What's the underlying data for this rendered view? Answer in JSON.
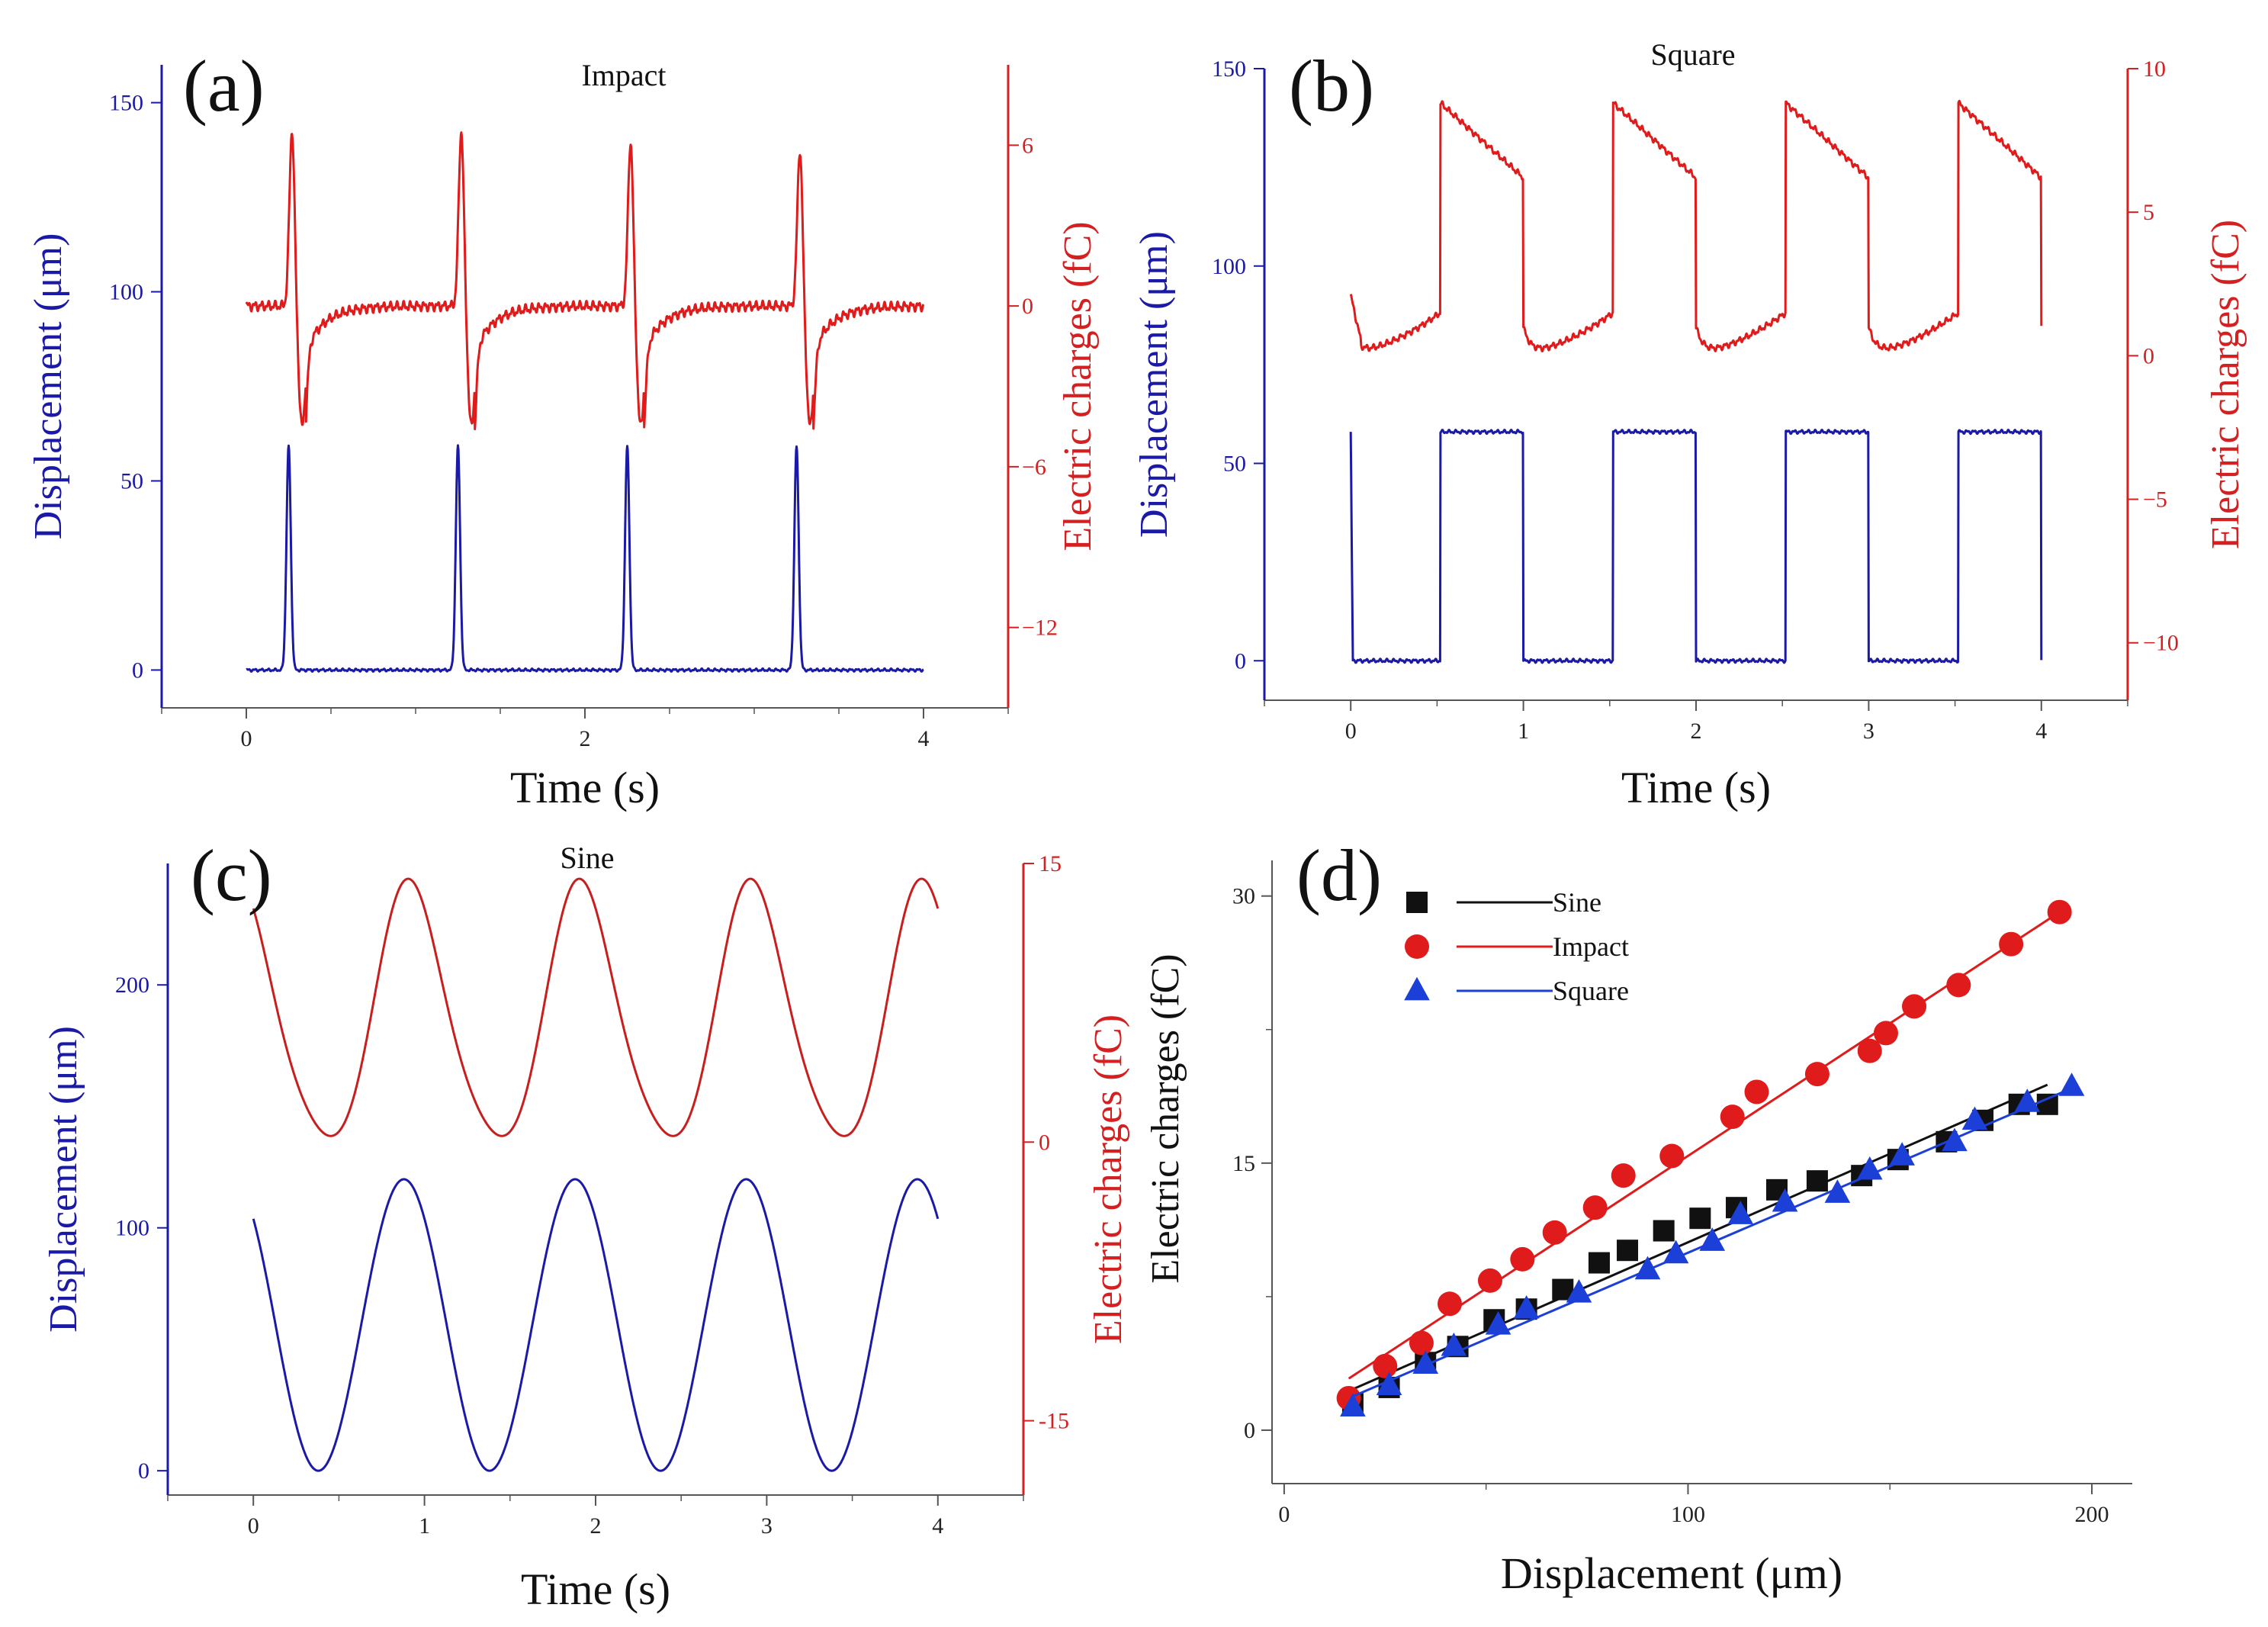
{
  "chart_data": [
    {
      "panel": "(a)",
      "title": "Impact",
      "type": "line",
      "xlabel": "Time (s)",
      "ylabel_left": "Displacement (μm)",
      "ylabel_right": "Electric charges (fC)",
      "xlim": [
        -0.5,
        4.5
      ],
      "ylim_left": [
        -10,
        160
      ],
      "ylim_right": [
        -15,
        9
      ],
      "xticks": [
        0,
        2,
        4
      ],
      "yticks_left": [
        0,
        50,
        100,
        150
      ],
      "yticks_right": [
        6,
        0,
        -6,
        -12
      ],
      "ytick_right_labels": [
        "6",
        "0",
        "−6",
        "−12"
      ],
      "series": [
        {
          "name": "Displacement",
          "axis": "left",
          "color": "#1a1aa6",
          "shape": "impact-displacement",
          "duration": 4,
          "pulse_times": [
            0.25,
            1.25,
            2.25,
            3.25
          ],
          "peak": 59,
          "base": 0
        },
        {
          "name": "Electric charges",
          "axis": "right",
          "color": "#e01b1b",
          "shape": "impact-charge",
          "duration": 4,
          "pulse_times": [
            0.25,
            1.25,
            2.25,
            3.25
          ],
          "peaks": [
            6.6,
            6.6,
            6.2,
            5.9
          ],
          "troughs": [
            -4.5,
            -4.5,
            -4.5,
            -4.5
          ],
          "base": 0
        }
      ]
    },
    {
      "panel": "(b)",
      "title": "Square",
      "type": "line",
      "xlabel": "Time (s)",
      "ylabel_left": "Displacement (μm)",
      "ylabel_right": "Electric charges (fC)",
      "xlim": [
        -0.5,
        4.5
      ],
      "ylim_left": [
        -10,
        150
      ],
      "ylim_right": [
        -12,
        10
      ],
      "xticks": [
        0,
        1,
        2,
        3,
        4
      ],
      "yticks_left": [
        0,
        50,
        100,
        150
      ],
      "yticks_right": [
        10,
        5,
        0,
        -5,
        -10
      ],
      "ytick_right_labels": [
        "10",
        "5",
        "0",
        "−5",
        "−10"
      ],
      "series": [
        {
          "name": "Displacement",
          "axis": "left",
          "color": "#1a1aa6",
          "shape": "square-displacement",
          "duration": 4,
          "period": 1,
          "high_start": 0.52,
          "high_end": 1.0,
          "high": 58,
          "low": 0
        },
        {
          "name": "Electric charges",
          "axis": "right",
          "color": "#e01b1b",
          "shape": "square-charge",
          "duration": 4,
          "period": 1,
          "rise_at": 0.52,
          "fall_at": 1.0,
          "rise_peak": 8.8,
          "before_fall": 6.2,
          "min": 0.1,
          "start": 2.1
        }
      ]
    },
    {
      "panel": "(c)",
      "title": "Sine",
      "type": "line",
      "xlabel": "Time (s)",
      "ylabel_left": "Displacement (μm)",
      "ylabel_right": "Electric charges (fC)",
      "xlim": [
        -0.5,
        4.5
      ],
      "ylim_left": [
        -10,
        250
      ],
      "ylim_right": [
        -19,
        15
      ],
      "xticks": [
        0,
        1,
        2,
        3,
        4
      ],
      "yticks_left": [
        0,
        100,
        200
      ],
      "yticks_right": [
        15,
        0,
        -15
      ],
      "ytick_right_labels": [
        "15",
        "0",
        "-15"
      ],
      "series": [
        {
          "name": "Displacement",
          "axis": "left",
          "color": "#1a1aa6",
          "shape": "sine-displacement",
          "duration": 4,
          "period": 1,
          "mean": 60,
          "amplitude": 60,
          "start": 100
        },
        {
          "name": "Electric charges",
          "axis": "right",
          "color": "#c81e1e",
          "shape": "sine-charge",
          "duration": 4,
          "period": 1,
          "max": 14,
          "min": -0.8,
          "start": 11
        }
      ]
    },
    {
      "panel": "(d)",
      "type": "scatter",
      "xlabel": "Displacement (μm)",
      "ylabel": "Electric charges (fC)",
      "xlim": [
        -3,
        210
      ],
      "ylim": [
        -3,
        32
      ],
      "xticks": [
        0,
        100,
        200
      ],
      "yticks": [
        0,
        15,
        30
      ],
      "legend": {
        "position": "top-left"
      },
      "series": [
        {
          "name": "Sine",
          "marker": "square",
          "color": "#111111",
          "x": [
            17,
            26,
            35,
            43,
            52,
            60,
            69,
            78,
            85,
            94,
            103,
            112,
            122,
            132,
            143,
            152,
            164,
            173,
            182,
            189
          ],
          "y": [
            1.5,
            2.4,
            3.8,
            4.7,
            6.2,
            6.8,
            7.9,
            9.4,
            10.1,
            11.2,
            11.9,
            12.5,
            13.5,
            14.0,
            14.3,
            15.2,
            16.2,
            17.4,
            18.3,
            18.3
          ],
          "fit": [
            [
              17,
              2.3
            ],
            [
              189,
              19.4
            ]
          ]
        },
        {
          "name": "Impact",
          "marker": "circle",
          "color": "#e01b1b",
          "x": [
            16,
            25,
            34,
            41,
            51,
            59,
            67,
            77,
            84,
            96,
            111,
            117,
            132,
            145,
            149,
            156,
            167,
            180,
            192
          ],
          "y": [
            1.8,
            3.6,
            4.9,
            7.1,
            8.4,
            9.6,
            11.1,
            12.5,
            14.3,
            15.4,
            17.6,
            19.0,
            20.0,
            21.3,
            22.3,
            23.8,
            25.0,
            27.3,
            29.1
          ],
          "fit": [
            [
              16,
              2.9
            ],
            [
              192,
              29.1
            ]
          ]
        },
        {
          "name": "Square",
          "marker": "triangle",
          "color": "#1c3fd8",
          "x": [
            17,
            26,
            35,
            42,
            53,
            60,
            73,
            90,
            97,
            106,
            113,
            124,
            137,
            145,
            153,
            166,
            171,
            184,
            195
          ],
          "y": [
            1.3,
            2.5,
            3.7,
            4.7,
            5.9,
            6.8,
            7.7,
            9.0,
            9.9,
            10.6,
            12.1,
            12.8,
            13.3,
            14.6,
            15.4,
            16.2,
            17.4,
            18.4,
            19.3
          ],
          "fit": [
            [
              17,
              1.9
            ],
            [
              195,
              19.2
            ]
          ]
        }
      ]
    }
  ]
}
